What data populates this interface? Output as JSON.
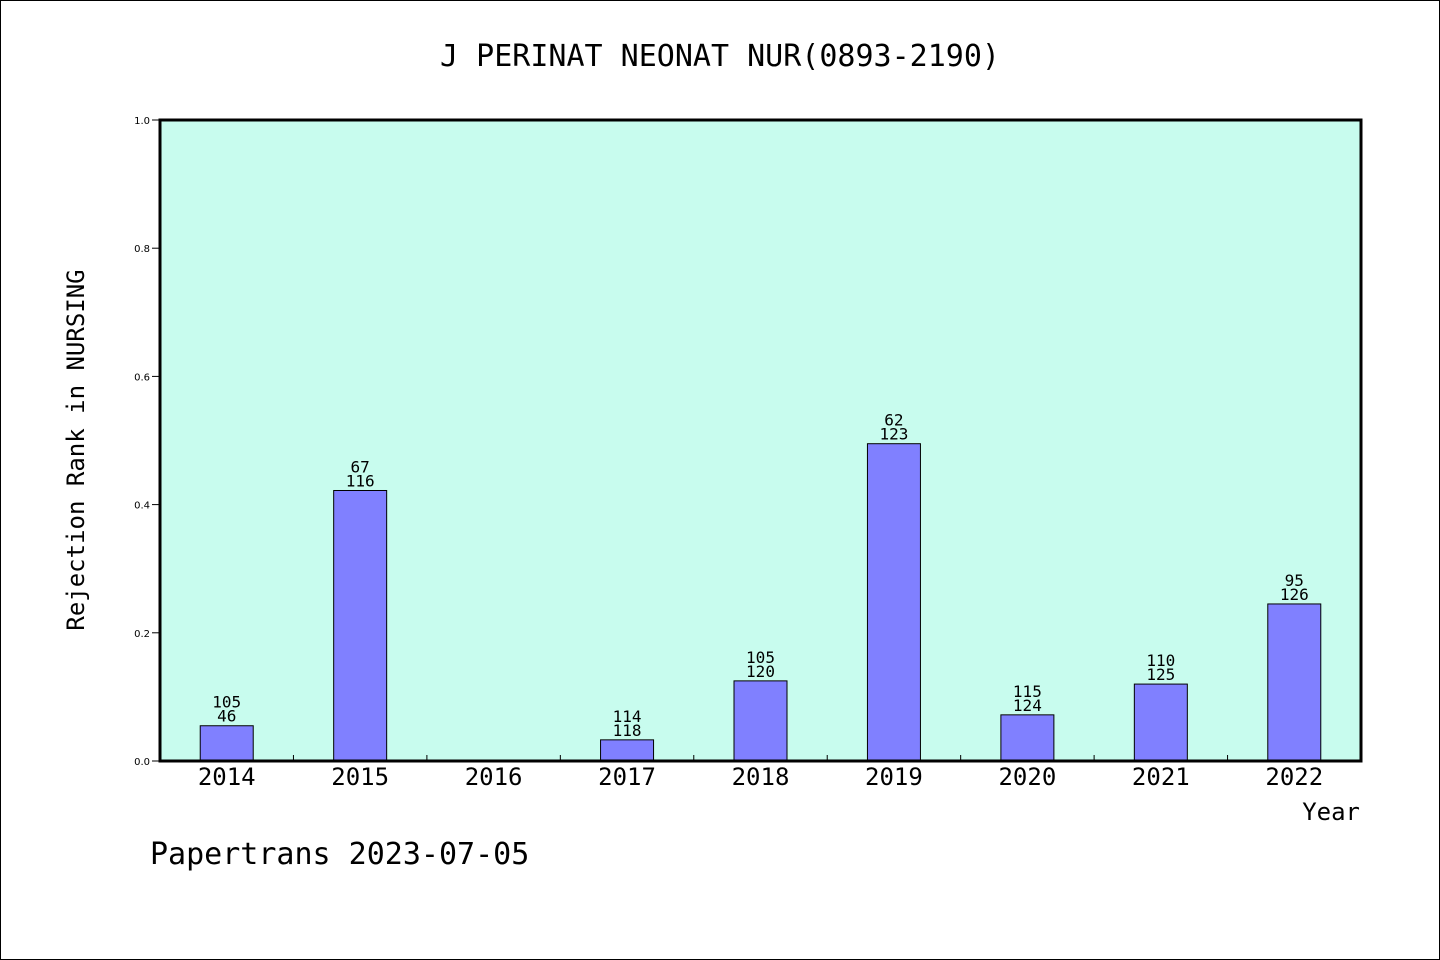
{
  "chart_data": {
    "type": "bar",
    "title": "J PERINAT NEONAT NUR(0893-2190)",
    "xlabel": "Year",
    "ylabel": "Rejection Rank in NURSING",
    "ylim": [
      0,
      1.0
    ],
    "yticks": [
      "0.0",
      "0.2",
      "0.4",
      "0.6",
      "0.8",
      "1.0"
    ],
    "categories": [
      "2014",
      "2015",
      "2016",
      "2017",
      "2018",
      "2019",
      "2020",
      "2021",
      "2022"
    ],
    "values": [
      0.055,
      0.422,
      0,
      0.033,
      0.125,
      0.495,
      0.072,
      0.12,
      0.245
    ],
    "label_top": [
      "105",
      "67",
      "",
      "114",
      "105",
      "62",
      "115",
      "110",
      "95"
    ],
    "label_bottom": [
      "46",
      "116",
      "",
      "118",
      "120",
      "123",
      "124",
      "125",
      "126"
    ],
    "grid": false,
    "colors": {
      "plot_background": "#c8fcee",
      "bar_fill": "#8080ff",
      "bar_stroke": "#000000"
    }
  },
  "footer": {
    "credit": "Papertrans 2023-07-05"
  }
}
